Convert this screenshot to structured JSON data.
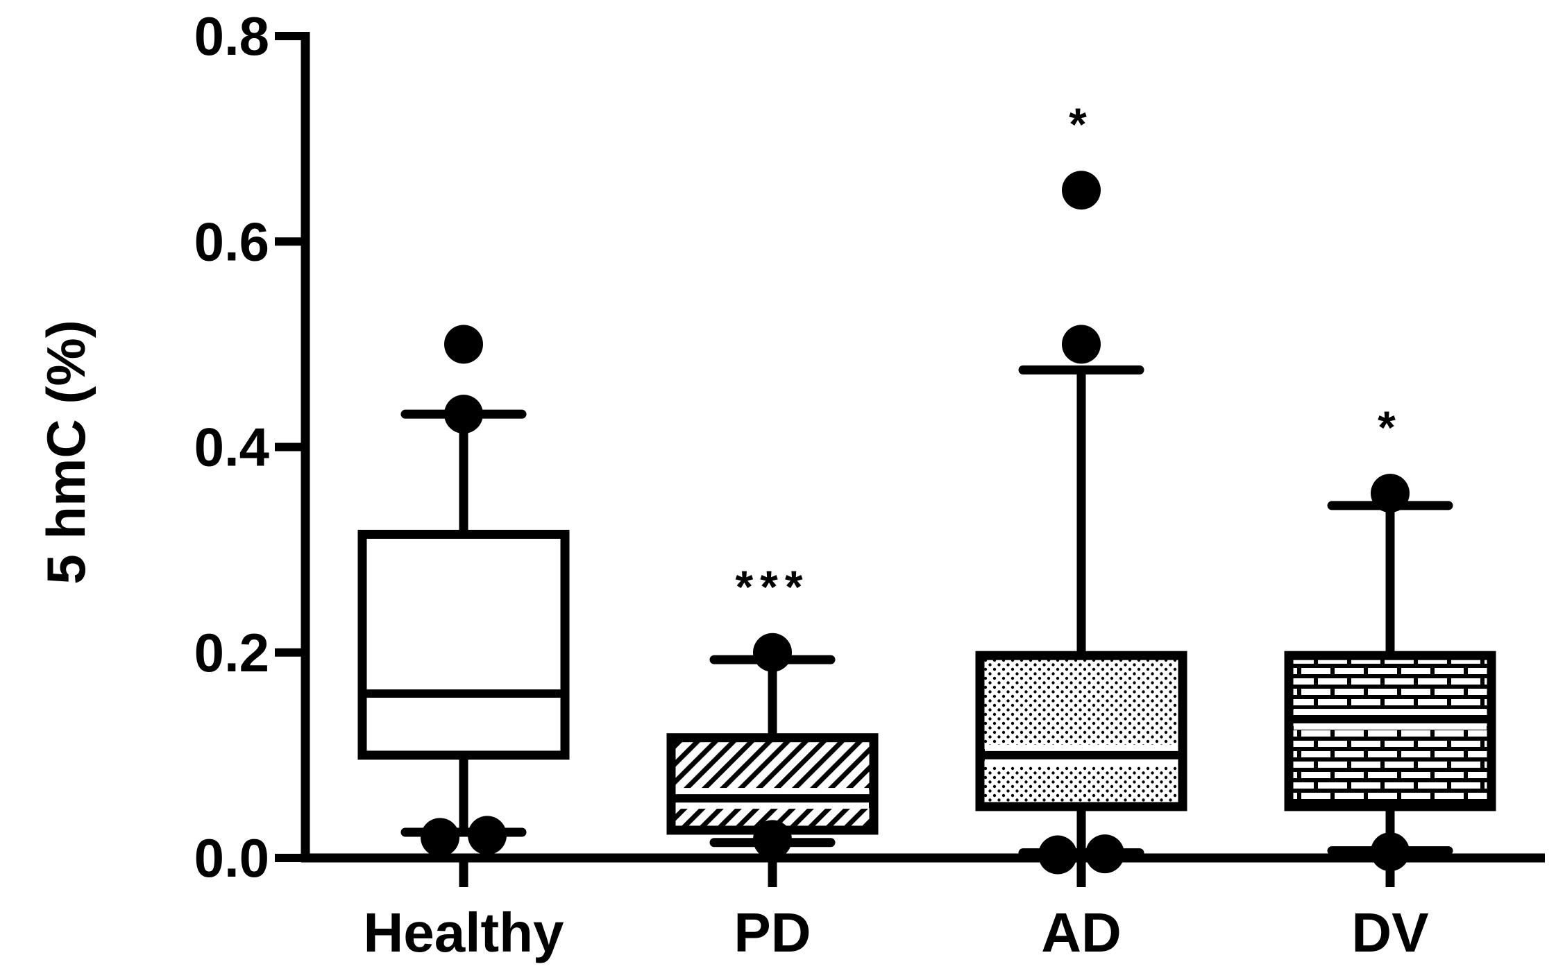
{
  "chart_data": {
    "type": "boxplot",
    "title": "",
    "xlabel": "",
    "ylabel": "5 hmC (%)",
    "ylim": [
      0,
      0.8
    ],
    "yticks": [
      "0.0",
      "0.2",
      "0.4",
      "0.6",
      "0.8"
    ],
    "categories": [
      "Healthy",
      "PD",
      "AD",
      "DV"
    ],
    "groups": [
      {
        "name": "Healthy",
        "pattern": "none",
        "whisker_low": 0.025,
        "q1": 0.1,
        "median": 0.16,
        "q3": 0.315,
        "whisker_high": 0.432,
        "outliers": [
          0.5,
          0.432,
          0.02,
          0.022
        ],
        "significance": ""
      },
      {
        "name": "PD",
        "pattern": "diagonal-hatch",
        "whisker_low": 0.015,
        "q1": 0.027,
        "median": 0.058,
        "q3": 0.117,
        "whisker_high": 0.193,
        "outliers": [
          0.2,
          0.018
        ],
        "significance": "***"
      },
      {
        "name": "AD",
        "pattern": "dots",
        "whisker_low": 0.005,
        "q1": 0.05,
        "median": 0.1,
        "q3": 0.197,
        "whisker_high": 0.475,
        "outliers": [
          0.65,
          0.5,
          0.003,
          0.004
        ],
        "significance": "*"
      },
      {
        "name": "DV",
        "pattern": "bricks",
        "whisker_low": 0.007,
        "q1": 0.05,
        "median": 0.135,
        "q3": 0.197,
        "whisker_high": 0.343,
        "outliers": [
          0.355,
          0.006
        ],
        "significance": "*"
      }
    ]
  }
}
